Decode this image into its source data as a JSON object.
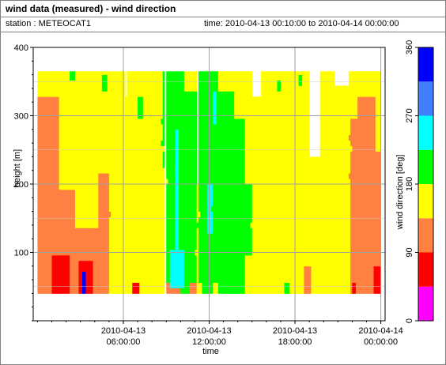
{
  "title": "wind data (measured) - wind direction",
  "station_label": "station : METEOCAT1",
  "time_label": "time: 2010-04-13 00:10:00 to 2010-04-14 00:00:00",
  "chart_data": {
    "type": "heatmap",
    "xlabel": "time",
    "ylabel": "height [m]",
    "colorbar_label": "wind direction [deg]",
    "x_range_hours": [
      -0.3,
      24.3
    ],
    "ylim": [
      0,
      400
    ],
    "x_ticks": [
      {
        "hours": 6,
        "line1": "2010-04-13",
        "line2": "06:00:00"
      },
      {
        "hours": 12,
        "line1": "2010-04-13",
        "line2": "12:00:00"
      },
      {
        "hours": 18,
        "line1": "2010-04-13",
        "line2": "18:00:00"
      },
      {
        "hours": 24,
        "line1": "2010-04-14",
        "line2": "00:00:00"
      }
    ],
    "y_ticks": [
      100,
      200,
      300,
      400
    ],
    "colorbar_range": [
      0,
      360
    ],
    "colorbar_ticks": [
      0,
      90,
      180,
      270,
      360
    ],
    "color_bins": [
      {
        "from": 0,
        "to": 45,
        "color": "#ff00ff"
      },
      {
        "from": 45,
        "to": 90,
        "color": "#ff0000"
      },
      {
        "from": 90,
        "to": 135,
        "color": "#ff8040"
      },
      {
        "from": 135,
        "to": 180,
        "color": "#ffff00"
      },
      {
        "from": 180,
        "to": 225,
        "color": "#00ff00"
      },
      {
        "from": 225,
        "to": 270,
        "color": "#00ffff"
      },
      {
        "from": 270,
        "to": 315,
        "color": "#4080ff"
      },
      {
        "from": 315,
        "to": 360,
        "color": "#0000ff"
      }
    ],
    "grid": true,
    "data_height_range": [
      40,
      365
    ],
    "regions": [
      {
        "t0": 0.0,
        "t1": 24.0,
        "h0": 40,
        "h1": 365,
        "dir": 160
      },
      {
        "t0": 0.0,
        "t1": 1.5,
        "h0": 40,
        "h1": 330,
        "dir": 110
      },
      {
        "t0": 1.5,
        "t1": 2.6,
        "h0": 40,
        "h1": 190,
        "dir": 110
      },
      {
        "t0": 2.6,
        "t1": 4.3,
        "h0": 40,
        "h1": 140,
        "dir": 110
      },
      {
        "t0": 4.3,
        "t1": 5.0,
        "h0": 40,
        "h1": 220,
        "dir": 110
      },
      {
        "t0": 1.0,
        "t1": 2.2,
        "h0": 40,
        "h1": 95,
        "dir": 60
      },
      {
        "t0": 2.9,
        "t1": 3.9,
        "h0": 40,
        "h1": 90,
        "dir": 60
      },
      {
        "t0": 3.1,
        "t1": 3.4,
        "h0": 40,
        "h1": 70,
        "dir": 320
      },
      {
        "t0": 6.6,
        "t1": 7.1,
        "h0": 40,
        "h1": 60,
        "dir": 60
      },
      {
        "t0": 2.2,
        "t1": 2.6,
        "h0": 355,
        "h1": 365,
        "dir": 200
      },
      {
        "t0": 4.5,
        "t1": 4.9,
        "h0": 340,
        "h1": 360,
        "dir": 200
      },
      {
        "t0": 7.0,
        "t1": 7.4,
        "h0": 300,
        "h1": 330,
        "dir": 200
      },
      {
        "t0": 8.7,
        "t1": 9.0,
        "h0": 225,
        "h1": 365,
        "dir": 200
      },
      {
        "t0": 9.0,
        "t1": 10.3,
        "h0": 40,
        "h1": 365,
        "dir": 200
      },
      {
        "t0": 10.3,
        "t1": 11.1,
        "h0": 40,
        "h1": 340,
        "dir": 200
      },
      {
        "t0": 8.3,
        "t1": 8.9,
        "h0": 40,
        "h1": 90,
        "dir": 160
      },
      {
        "t0": 8.9,
        "t1": 10.0,
        "h0": 40,
        "h1": 60,
        "dir": 110
      },
      {
        "t0": 9.6,
        "t1": 9.9,
        "h0": 90,
        "h1": 280,
        "dir": 250
      },
      {
        "t0": 9.2,
        "t1": 10.3,
        "h0": 45,
        "h1": 105,
        "dir": 250
      },
      {
        "t0": 10.6,
        "t1": 11.1,
        "h0": 40,
        "h1": 55,
        "dir": 110
      },
      {
        "t0": 11.3,
        "t1": 12.0,
        "h0": 40,
        "h1": 365,
        "dir": 200
      },
      {
        "t0": 12.0,
        "t1": 12.6,
        "h0": 40,
        "h1": 365,
        "dir": 200
      },
      {
        "t0": 12.6,
        "t1": 13.8,
        "h0": 40,
        "h1": 340,
        "dir": 200
      },
      {
        "t0": 13.8,
        "t1": 14.5,
        "h0": 40,
        "h1": 300,
        "dir": 200
      },
      {
        "t0": 14.5,
        "t1": 15.0,
        "h0": 100,
        "h1": 200,
        "dir": 200
      },
      {
        "t0": 11.1,
        "t1": 11.5,
        "h0": 40,
        "h1": 60,
        "dir": 160
      },
      {
        "t0": 12.3,
        "t1": 12.6,
        "h0": 40,
        "h1": 55,
        "dir": 160
      },
      {
        "t0": 11.9,
        "t1": 12.2,
        "h0": 130,
        "h1": 200,
        "dir": 250
      },
      {
        "t0": 12.3,
        "t1": 12.5,
        "h0": 290,
        "h1": 340,
        "dir": 250
      },
      {
        "t0": 21.9,
        "t1": 22.4,
        "h0": 40,
        "h1": 300,
        "dir": 110
      },
      {
        "t0": 22.4,
        "t1": 23.6,
        "h0": 40,
        "h1": 330,
        "dir": 110
      },
      {
        "t0": 23.6,
        "t1": 24.0,
        "h0": 40,
        "h1": 250,
        "dir": 110
      },
      {
        "t0": 23.5,
        "t1": 24.0,
        "h0": 40,
        "h1": 80,
        "dir": 60
      },
      {
        "t0": 22.0,
        "t1": 22.3,
        "h0": 40,
        "h1": 60,
        "dir": 60
      },
      {
        "t0": 18.6,
        "t1": 19.1,
        "h0": 40,
        "h1": 80,
        "dir": 110
      },
      {
        "t0": 16.7,
        "t1": 17.0,
        "h0": 335,
        "h1": 350,
        "dir": 200
      },
      {
        "t0": 18.3,
        "t1": 18.5,
        "h0": 345,
        "h1": 360,
        "dir": 200
      },
      {
        "t0": 17.3,
        "t1": 17.6,
        "h0": 40,
        "h1": 55,
        "dir": 200
      }
    ],
    "gaps": [
      {
        "t0": 6.1,
        "t1": 6.3,
        "h0": 330,
        "h1": 365
      },
      {
        "t0": 15.0,
        "t1": 15.6,
        "h0": 330,
        "h1": 365
      },
      {
        "t0": 19.0,
        "t1": 19.8,
        "h0": 240,
        "h1": 365
      },
      {
        "t0": 20.8,
        "t1": 21.8,
        "h0": 345,
        "h1": 365
      },
      {
        "t0": 8.9,
        "t1": 9.0,
        "h0": 40,
        "h1": 365
      },
      {
        "t0": 11.1,
        "t1": 11.3,
        "h0": 200,
        "h1": 365
      }
    ]
  }
}
